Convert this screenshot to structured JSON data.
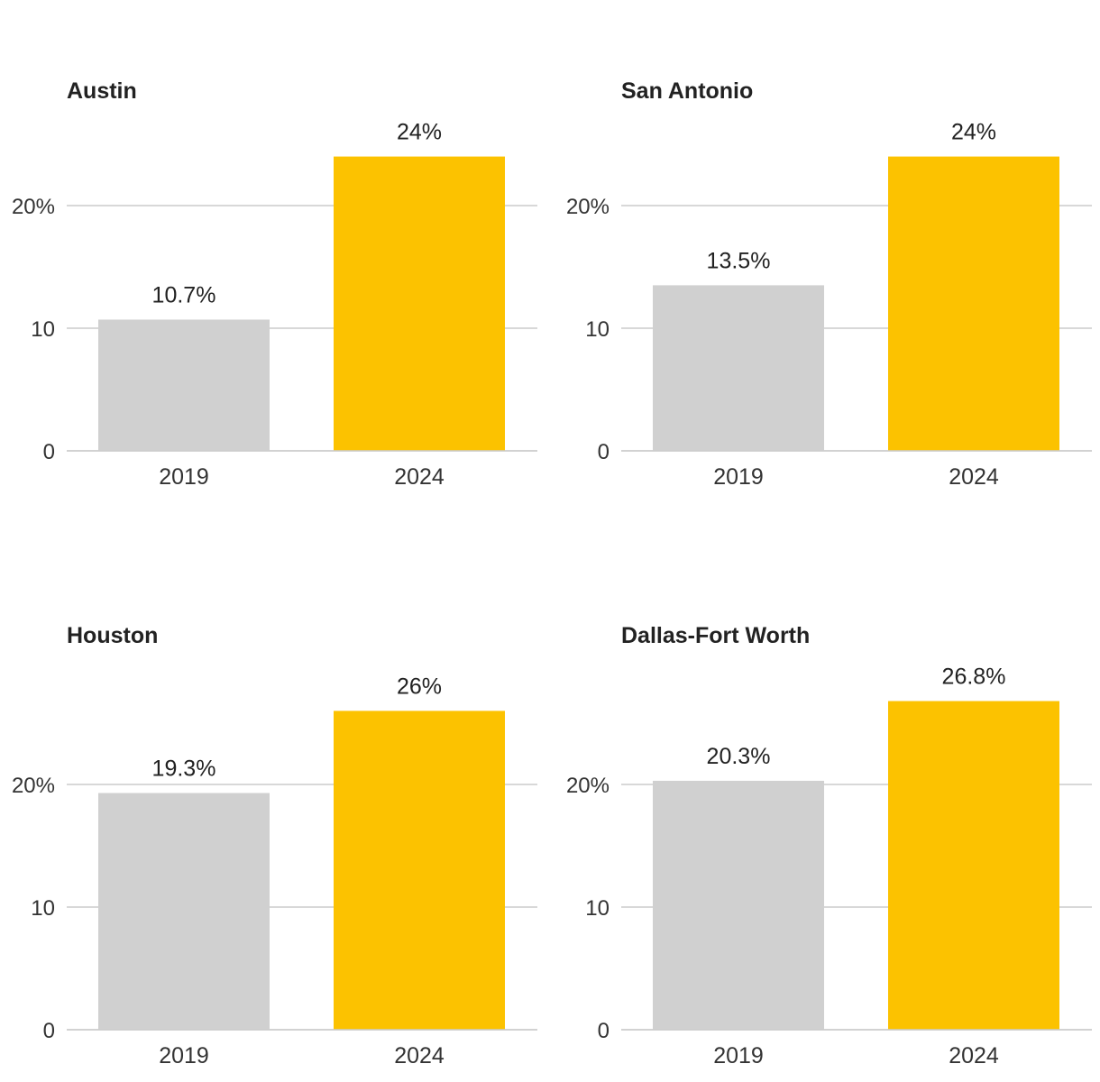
{
  "colors": {
    "baseline_bar": "#d0d0d0",
    "highlight_bar": "#fcc200",
    "grid": "#cccccc",
    "text": "#222222"
  },
  "chart_data": [
    {
      "type": "bar",
      "title": "Austin",
      "categories": [
        "2019",
        "2024"
      ],
      "values": [
        10.7,
        24
      ],
      "value_labels": [
        "10.7%",
        "24%"
      ],
      "yticks": [
        0,
        10,
        20
      ],
      "ytick_labels": [
        "0",
        "10",
        "20%"
      ],
      "ylim": [
        0,
        30
      ],
      "grid": true
    },
    {
      "type": "bar",
      "title": "San Antonio",
      "categories": [
        "2019",
        "2024"
      ],
      "values": [
        13.5,
        24
      ],
      "value_labels": [
        "13.5%",
        "24%"
      ],
      "yticks": [
        0,
        10,
        20
      ],
      "ytick_labels": [
        "0",
        "10",
        "20%"
      ],
      "ylim": [
        0,
        30
      ],
      "grid": true
    },
    {
      "type": "bar",
      "title": "Houston",
      "categories": [
        "2019",
        "2024"
      ],
      "values": [
        19.3,
        26
      ],
      "value_labels": [
        "19.3%",
        "26%"
      ],
      "yticks": [
        0,
        10,
        20
      ],
      "ytick_labels": [
        "0",
        "10",
        "20%"
      ],
      "ylim": [
        0,
        30
      ],
      "grid": true
    },
    {
      "type": "bar",
      "title": "Dallas-Fort Worth",
      "categories": [
        "2019",
        "2024"
      ],
      "values": [
        20.3,
        26.8
      ],
      "value_labels": [
        "20.3%",
        "26.8%"
      ],
      "yticks": [
        0,
        10,
        20
      ],
      "ytick_labels": [
        "0",
        "10",
        "20%"
      ],
      "ylim": [
        0,
        30
      ],
      "grid": true
    }
  ]
}
